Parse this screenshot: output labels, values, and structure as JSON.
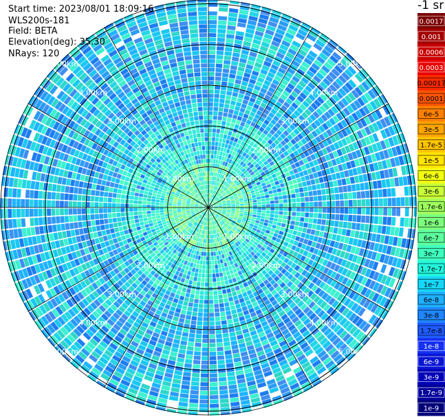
{
  "header": {
    "start_time": "Start time: 2023/08/01 18:09:16",
    "instrument": "WLS200s-181",
    "field": "Field: BETA",
    "elevation": "Elevation(deg): 35.30",
    "nrays": "NRays: 120"
  },
  "chart_data": {
    "type": "heatmap",
    "projection": "polar",
    "ring_labels": [
      "1.00km",
      "2.00km",
      "3.00km",
      "4.00km",
      "5.00km"
    ],
    "rings_km": [
      1,
      2,
      3,
      4,
      5
    ],
    "max_range_km": 5.1,
    "radial_lines": 12,
    "colorbar": {
      "title": "-1 sr",
      "labels": [
        "0.0017",
        "0.001",
        "0.0006",
        "0.0003",
        "0.00017",
        "0.0001",
        "6e-5",
        "3e-5",
        "1.7e-5",
        "1e-5",
        "6e-6",
        "3e-6",
        "1.7e-6",
        "1e-6",
        "6e-7",
        "3e-7",
        "1.7e-7",
        "1e-7",
        "6e-8",
        "3e-8",
        "1.7e-8",
        "1e-8",
        "6e-9",
        "3e-9",
        "1.7e-9",
        "1e-9"
      ],
      "colors": [
        "#7a0000",
        "#a30000",
        "#c80000",
        "#e80000",
        "#ff2a00",
        "#ff5500",
        "#ff8000",
        "#ffa500",
        "#ffc400",
        "#ffe400",
        "#f4ff10",
        "#caff38",
        "#9fff5e",
        "#7dff7d",
        "#5eff9e",
        "#3effbf",
        "#22f7de",
        "#18d6f7",
        "#20b0ff",
        "#1f86ff",
        "#1f5bff",
        "#1530f0",
        "#0a16d4",
        "#0000b8",
        "#00009a",
        "#000079"
      ],
      "label_colors": [
        "#ffffff",
        "#ffffff",
        "#ffffff",
        "#ffffff",
        "#000000",
        "#000000",
        "#000000",
        "#000000",
        "#000000",
        "#000000",
        "#000000",
        "#000000",
        "#000000",
        "#000000",
        "#000000",
        "#000000",
        "#000000",
        "#000000",
        "#000000",
        "#000000",
        "#000000",
        "#ffffff",
        "#ffffff",
        "#ffffff",
        "#ffffff",
        "#ffffff"
      ]
    }
  }
}
